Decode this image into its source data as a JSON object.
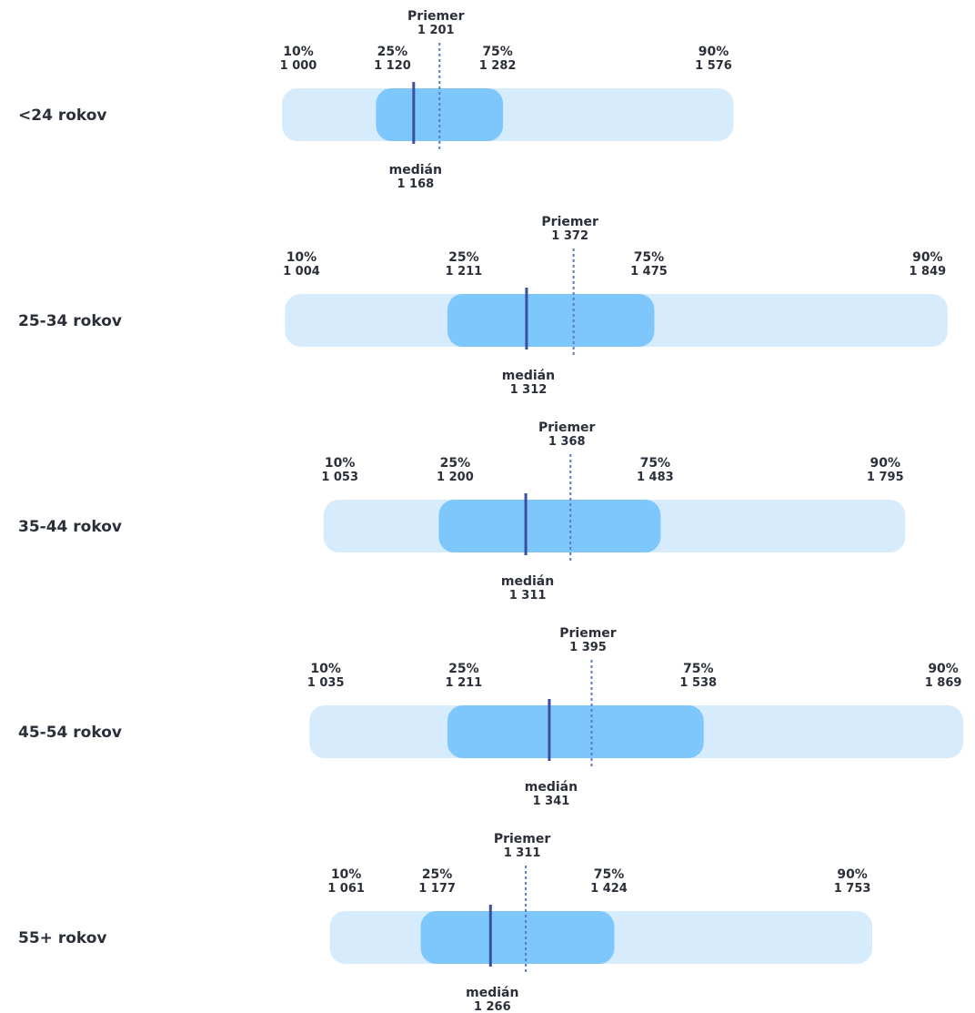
{
  "chart_data": {
    "type": "boxplot",
    "title": "",
    "labels": {
      "mean": "Priemer",
      "median": "medián",
      "p10": "10%",
      "p25": "25%",
      "p75": "75%",
      "p90": "90%"
    },
    "colors": {
      "outer_band": "#d6ebfb",
      "inner_band": "#7dc7fc",
      "median_line": "#3b4fa0",
      "mean_line": "#5b7bc4",
      "text": "#2b2f3a"
    },
    "rows": [
      {
        "category": "<24 rokov",
        "p10": 1000,
        "p25": 1120,
        "median": 1168,
        "mean": 1201,
        "p75": 1282,
        "p90": 1576,
        "p10_text": "1 000",
        "p25_text": "1 120",
        "median_text": "1 168",
        "mean_text": "1 201",
        "p75_text": "1 282",
        "p90_text": "1 576"
      },
      {
        "category": "25-34 rokov",
        "p10": 1004,
        "p25": 1211,
        "median": 1312,
        "mean": 1372,
        "p75": 1475,
        "p90": 1849,
        "p10_text": "1 004",
        "p25_text": "1 211",
        "median_text": "1 312",
        "mean_text": "1 372",
        "p75_text": "1 475",
        "p90_text": "1 849"
      },
      {
        "category": "35-44 rokov",
        "p10": 1053,
        "p25": 1200,
        "median": 1311,
        "mean": 1368,
        "p75": 1483,
        "p90": 1795,
        "p10_text": "1 053",
        "p25_text": "1 200",
        "median_text": "1 311",
        "mean_text": "1 368",
        "p75_text": "1 483",
        "p90_text": "1 795"
      },
      {
        "category": "45-54 rokov",
        "p10": 1035,
        "p25": 1211,
        "median": 1341,
        "mean": 1395,
        "p75": 1538,
        "p90": 1869,
        "p10_text": "1 035",
        "p25_text": "1 211",
        "median_text": "1 341",
        "mean_text": "1 395",
        "p75_text": "1 538",
        "p90_text": "1 869"
      },
      {
        "category": "55+ rokov",
        "p10": 1061,
        "p25": 1177,
        "median": 1266,
        "mean": 1311,
        "p75": 1424,
        "p90": 1753,
        "p10_text": "1 061",
        "p25_text": "1 177",
        "median_text": "1 266",
        "mean_text": "1 311",
        "p75_text": "1 424",
        "p90_text": "1 753"
      }
    ]
  }
}
